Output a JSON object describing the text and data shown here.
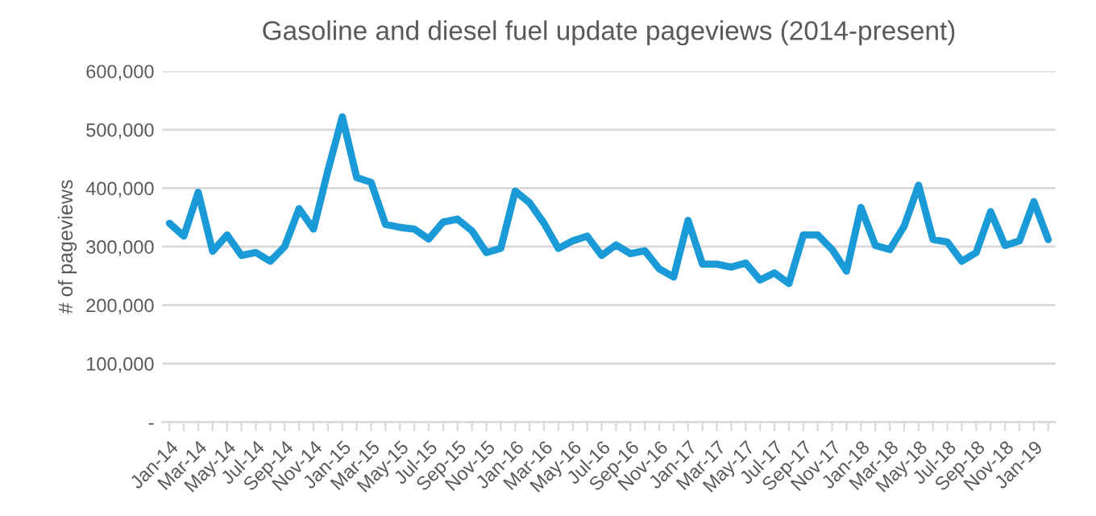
{
  "chart_data": {
    "type": "line",
    "title": "Gasoline and diesel fuel update pageviews (2014-present)",
    "ylabel": "# of pageviews",
    "categories": [
      "Jan-14",
      null,
      "Mar-14",
      null,
      "May-14",
      null,
      "Jul-14",
      null,
      "Sep-14",
      null,
      "Nov-14",
      null,
      "Jan-15",
      null,
      "Mar-15",
      null,
      "May-15",
      null,
      "Jul-15",
      null,
      "Sep-15",
      null,
      "Nov-15",
      null,
      "Jan-16",
      null,
      "Mar-16",
      null,
      "May-16",
      null,
      "Jul-16",
      null,
      "Sep-16",
      null,
      "Nov-16",
      null,
      "Jan-17",
      null,
      "Mar-17",
      null,
      "May-17",
      null,
      "Jul-17",
      null,
      "Sep-17",
      null,
      "Nov-17",
      null,
      "Jan-18",
      null,
      "Mar-18",
      null,
      "May-18",
      null,
      "Jul-18",
      null,
      "Sep-18",
      null,
      "Nov-18",
      null,
      "Jan-19",
      null
    ],
    "series": [
      {
        "color": "#1a9ad6",
        "values": [
          340000,
          318000,
          393000,
          292000,
          320000,
          285000,
          290000,
          275000,
          300000,
          365000,
          330000,
          430000,
          522000,
          418000,
          410000,
          338000,
          333000,
          330000,
          313000,
          342000,
          347000,
          327000,
          290000,
          297000,
          395000,
          375000,
          340000,
          297000,
          310000,
          318000,
          285000,
          303000,
          288000,
          293000,
          262000,
          248000,
          345000,
          270000,
          270000,
          265000,
          272000,
          243000,
          255000,
          237000,
          320000,
          320000,
          295000,
          258000,
          367000,
          302000,
          295000,
          335000,
          405000,
          312000,
          308000,
          275000,
          290000,
          360000,
          302000,
          310000,
          377000,
          312000
        ]
      }
    ],
    "ylim": [
      0,
      600000
    ],
    "yticks": [
      {
        "value": 0,
        "label": "-"
      },
      {
        "value": 100000,
        "label": "100,000"
      },
      {
        "value": 200000,
        "label": "200,000"
      },
      {
        "value": 300000,
        "label": "300,000"
      },
      {
        "value": 400000,
        "label": "400,000"
      },
      {
        "value": 500000,
        "label": "500,000"
      },
      {
        "value": 600000,
        "label": "600,000"
      }
    ],
    "grid": "y",
    "legend": false,
    "marker": "none",
    "line_style": "solid"
  }
}
